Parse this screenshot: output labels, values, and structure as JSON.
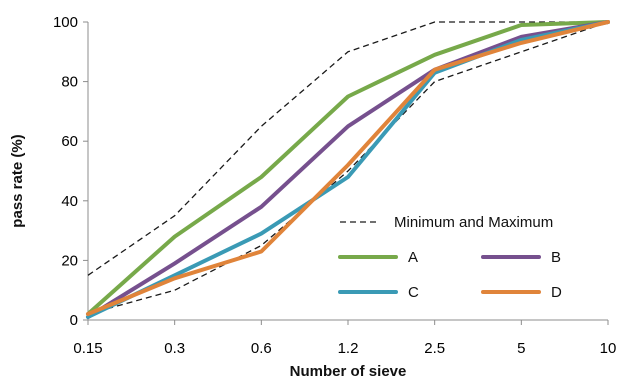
{
  "chart_data": {
    "type": "line",
    "title": "",
    "xlabel": "Number of sieve",
    "ylabel": "pass rate (%)",
    "ylim": [
      0,
      100
    ],
    "yticks": [
      0,
      20,
      40,
      60,
      80,
      100
    ],
    "categories": [
      "0.15",
      "0.3",
      "0.6",
      "1.2",
      "2.5",
      "5",
      "10"
    ],
    "grid": false,
    "legend": {
      "placement": "lower-right"
    },
    "series": [
      {
        "name": "Minimum",
        "values": [
          2,
          10,
          25,
          50,
          80,
          90,
          100
        ],
        "color": "#1a1a1a",
        "style": "dashed"
      },
      {
        "name": "Maximum",
        "values": [
          15,
          35,
          65,
          90,
          100,
          100,
          100
        ],
        "color": "#1a1a1a",
        "style": "dashed"
      },
      {
        "name": "A",
        "values": [
          2,
          28,
          48,
          75,
          89,
          99,
          100
        ],
        "color": "#77a94a",
        "style": "solid"
      },
      {
        "name": "B",
        "values": [
          1,
          19,
          38,
          65,
          84,
          95,
          100
        ],
        "color": "#76508e",
        "style": "solid"
      },
      {
        "name": "C",
        "values": [
          1,
          15,
          29,
          48,
          83,
          94,
          100
        ],
        "color": "#3a9ab5",
        "style": "solid"
      },
      {
        "name": "D",
        "values": [
          2,
          14,
          23,
          52,
          84,
          93,
          100
        ],
        "color": "#e0843a",
        "style": "solid"
      }
    ],
    "legend_entries": [
      {
        "label": "Minimum and Maximum",
        "style": "dashed",
        "color": "#1a1a1a"
      },
      {
        "label": "A",
        "style": "solid",
        "color": "#77a94a"
      },
      {
        "label": "B",
        "style": "solid",
        "color": "#76508e"
      },
      {
        "label": "C",
        "style": "solid",
        "color": "#3a9ab5"
      },
      {
        "label": "D",
        "style": "solid",
        "color": "#e0843a"
      }
    ]
  }
}
